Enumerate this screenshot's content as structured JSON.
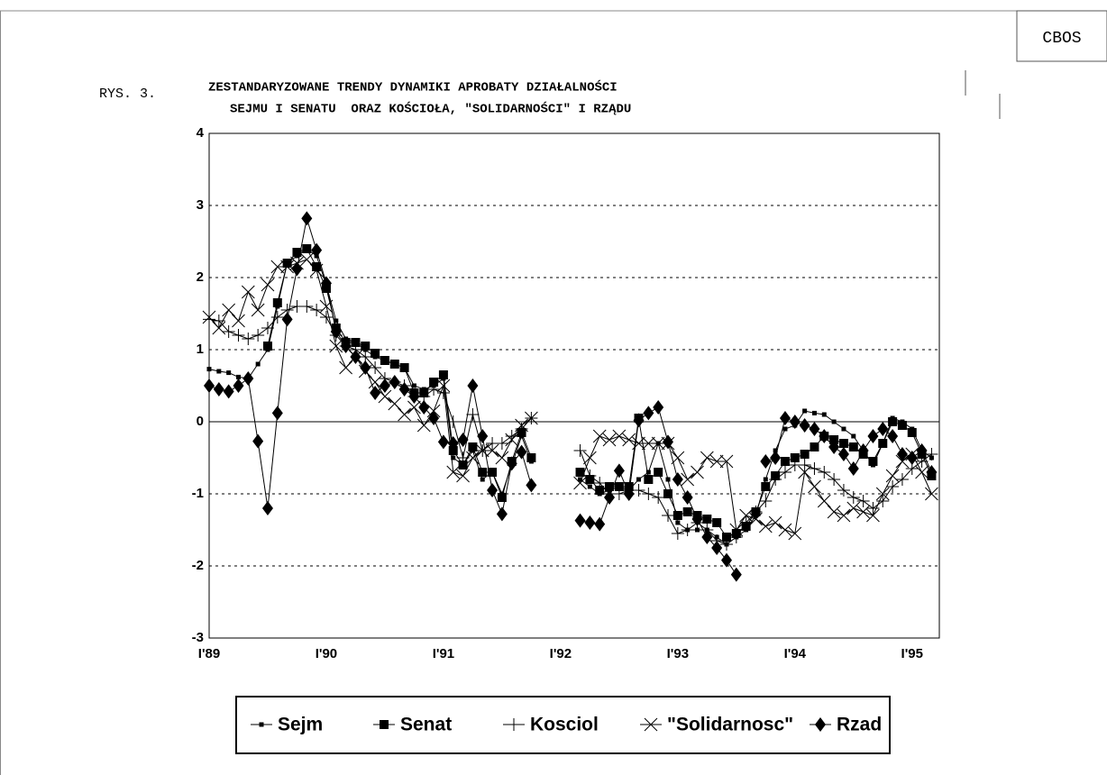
{
  "chart_data": {
    "type": "line",
    "source": "CBOS",
    "figure_label": "RYS. 3.",
    "title": [
      "ZESTANDARYZOWANE TRENDY DYNAMIKI APROBATY DZIAŁALNOŚCI",
      "SEJMU I SENATU  ORAZ KOŚCIOŁA, \"SOLIDARNOŚCI\" I RZĄDU"
    ],
    "categories": [
      "I'89",
      null,
      null,
      null,
      null,
      null,
      null,
      null,
      null,
      null,
      null,
      null,
      "I'90",
      null,
      null,
      null,
      null,
      null,
      null,
      null,
      null,
      null,
      null,
      null,
      "I'91",
      null,
      null,
      null,
      null,
      null,
      null,
      null,
      null,
      null,
      null,
      null,
      "I'92",
      null,
      null,
      null,
      null,
      null,
      null,
      null,
      null,
      null,
      null,
      null,
      "I'93",
      null,
      null,
      null,
      null,
      null,
      null,
      null,
      null,
      null,
      null,
      null,
      "I'94",
      null,
      null,
      null,
      null,
      null,
      null,
      null,
      null,
      null,
      null,
      null,
      "I'95",
      null,
      null
    ],
    "ylim": [
      -3,
      4
    ],
    "yticks": [
      -3,
      -2,
      -1,
      0,
      1,
      2,
      3,
      4
    ],
    "grid": true,
    "series": [
      {
        "name": "Sejm",
        "color": "#000000",
        "marker": "small-square",
        "values": [
          0.73,
          0.7,
          0.68,
          0.62,
          0.6,
          0.8,
          1.0,
          1.6,
          2.2,
          2.3,
          2.4,
          2.3,
          1.9,
          1.4,
          1.15,
          1.1,
          1.0,
          0.9,
          0.85,
          0.8,
          0.75,
          0.5,
          0.45,
          0.5,
          0.6,
          -0.5,
          -0.6,
          -0.4,
          -0.8,
          -0.7,
          -1.0,
          -0.6,
          -0.2,
          -0.55,
          null,
          null,
          null,
          null,
          -0.8,
          -0.9,
          -1.0,
          -0.95,
          -0.9,
          -0.95,
          -0.8,
          -0.7,
          -0.3,
          -0.8,
          -1.4,
          -1.5,
          -1.5,
          -1.5,
          -1.6,
          -1.7,
          -1.6,
          -1.5,
          -1.3,
          -0.8,
          -0.4,
          -0.1,
          -0.05,
          0.15,
          0.12,
          0.1,
          0.0,
          -0.1,
          -0.2,
          -0.4,
          -0.6,
          -0.3,
          0.05,
          0.0,
          -0.1,
          -0.4,
          -0.5
        ]
      },
      {
        "name": "Senat",
        "color": "#000000",
        "marker": "square",
        "values": [
          null,
          null,
          null,
          null,
          null,
          null,
          1.05,
          1.65,
          2.2,
          2.35,
          2.4,
          2.15,
          1.85,
          1.3,
          1.1,
          1.1,
          1.05,
          0.95,
          0.85,
          0.8,
          0.75,
          0.4,
          0.4,
          0.55,
          0.65,
          -0.4,
          -0.6,
          -0.35,
          -0.7,
          -0.7,
          -1.05,
          -0.55,
          -0.15,
          -0.5,
          null,
          null,
          null,
          null,
          -0.7,
          -0.8,
          -0.95,
          -0.9,
          -0.9,
          -0.9,
          0.05,
          -0.8,
          -0.7,
          -1.0,
          -1.3,
          -1.25,
          -1.3,
          -1.35,
          -1.4,
          -1.6,
          -1.55,
          -1.45,
          -1.25,
          -0.9,
          -0.75,
          -0.55,
          -0.5,
          -0.45,
          -0.35,
          -0.2,
          -0.25,
          -0.3,
          -0.35,
          -0.45,
          -0.55,
          -0.3,
          0.0,
          -0.05,
          -0.15,
          -0.45,
          -0.75
        ]
      },
      {
        "name": "Kosciol",
        "color": "#000000",
        "marker": "plus",
        "values": [
          1.42,
          1.4,
          1.25,
          1.2,
          1.15,
          1.2,
          1.3,
          1.45,
          1.55,
          1.6,
          1.6,
          1.55,
          1.45,
          1.2,
          1.05,
          1.0,
          0.9,
          0.75,
          0.6,
          0.55,
          0.5,
          0.35,
          0.35,
          0.45,
          0.4,
          0.0,
          -0.5,
          0.1,
          -0.4,
          -0.3,
          -0.3,
          -0.2,
          -0.1,
          0.05,
          null,
          null,
          null,
          null,
          -0.4,
          -0.75,
          -0.85,
          -1.0,
          -1.0,
          -0.95,
          -0.95,
          -1.0,
          -1.05,
          -1.3,
          -1.55,
          -1.5,
          -1.4,
          -1.5,
          -1.65,
          -1.7,
          -1.6,
          -1.4,
          -1.25,
          -1.1,
          -0.8,
          -0.7,
          -0.6,
          -0.6,
          -0.65,
          -0.7,
          -0.8,
          -0.95,
          -1.05,
          -1.1,
          -1.2,
          -1.1,
          -0.9,
          -0.8,
          -0.65,
          -0.55,
          -0.45
        ]
      },
      {
        "name": "\"Solidarnosc\"",
        "color": "#000000",
        "marker": "cross",
        "values": [
          1.45,
          1.3,
          1.55,
          1.4,
          1.8,
          1.55,
          1.9,
          2.15,
          2.15,
          2.2,
          2.25,
          2.1,
          1.6,
          1.05,
          0.75,
          0.9,
          0.7,
          0.55,
          0.35,
          0.25,
          0.1,
          0.2,
          -0.05,
          0.15,
          0.5,
          -0.7,
          -0.75,
          -0.5,
          -0.4,
          -0.4,
          -0.5,
          -0.25,
          -0.05,
          0.05,
          null,
          null,
          null,
          null,
          -0.85,
          -0.5,
          -0.2,
          -0.25,
          -0.2,
          -0.25,
          -0.3,
          -0.3,
          -0.3,
          -0.3,
          -0.5,
          -0.8,
          -0.7,
          -0.5,
          -0.55,
          -0.55,
          -1.5,
          -1.3,
          -1.35,
          -1.45,
          -1.4,
          -1.5,
          -1.55,
          -0.7,
          -0.9,
          -1.1,
          -1.25,
          -1.3,
          -1.2,
          -1.25,
          -1.3,
          -1.0,
          -0.75,
          -0.55,
          -0.45,
          -0.7,
          -1.0
        ]
      },
      {
        "name": "Rzad",
        "color": "#000000",
        "marker": "diamond",
        "values": [
          0.5,
          0.45,
          0.42,
          0.5,
          0.6,
          -0.27,
          -1.2,
          0.12,
          1.42,
          2.12,
          2.82,
          2.38,
          1.92,
          1.25,
          1.05,
          0.9,
          0.75,
          0.4,
          0.5,
          0.55,
          0.45,
          0.35,
          0.2,
          0.05,
          -0.28,
          -0.3,
          -0.25,
          0.5,
          -0.2,
          -0.95,
          -1.28,
          -0.58,
          -0.42,
          -0.88,
          null,
          null,
          null,
          null,
          -1.37,
          -1.4,
          -1.42,
          -1.05,
          -0.68,
          -1.0,
          0.02,
          0.12,
          0.2,
          -0.28,
          -0.8,
          -1.05,
          -1.35,
          -1.6,
          -1.75,
          -1.92,
          -2.12,
          null,
          null,
          -0.55,
          -0.5,
          0.05,
          0.0,
          -0.05,
          -0.1,
          -0.2,
          -0.35,
          -0.45,
          -0.65,
          -0.4,
          -0.2,
          -0.1,
          -0.2,
          -0.45,
          -0.5,
          -0.4,
          -0.7
        ]
      }
    ]
  }
}
